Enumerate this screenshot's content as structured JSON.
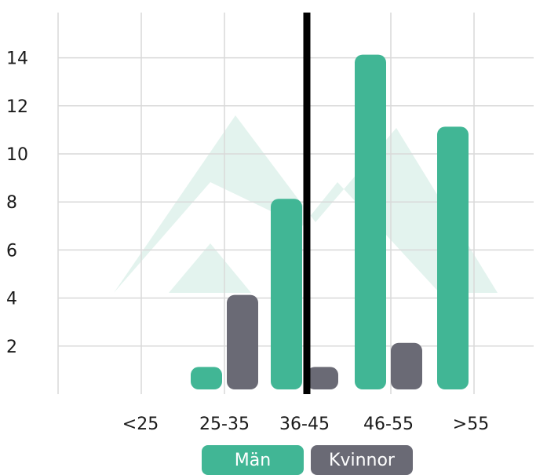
{
  "chart_data": {
    "type": "bar",
    "categories": [
      "<25",
      "25-35",
      "36-45",
      "46-55",
      ">55"
    ],
    "series": [
      {
        "name": "Män",
        "color": "#41b695",
        "values": [
          0,
          1,
          8,
          14,
          11
        ]
      },
      {
        "name": "Kvinnor",
        "color": "#6a6a75",
        "values": [
          0,
          4,
          1,
          2,
          0
        ]
      }
    ],
    "y_ticks": [
      "2",
      "4",
      "6",
      "8",
      "10",
      "12",
      "14"
    ],
    "ylim": [
      0,
      15.5
    ],
    "grid": true,
    "legend_position": "bottom-center",
    "divider_between": [
      "36-45",
      "46-55"
    ]
  },
  "legend": {
    "men_label": "Män",
    "women_label": "Kvinnor"
  },
  "colors": {
    "men": "#41b695",
    "women": "#6a6a75",
    "grid": "#d9d9d9",
    "watermark": "#e3f3ee",
    "divider": "#000000"
  }
}
